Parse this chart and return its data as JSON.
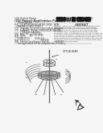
{
  "bg_color": "#f5f5f5",
  "text_color": "#333333",
  "line_color": "#666666",
  "dark_color": "#222222",
  "barcode_color": "#111111",
  "diagram_label": "OPTICAL BEAM"
}
